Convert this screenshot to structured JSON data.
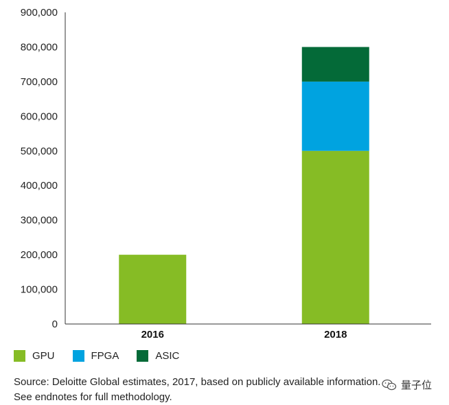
{
  "chart_data": {
    "type": "bar",
    "stacked": true,
    "categories": [
      "2016",
      "2018"
    ],
    "series": [
      {
        "name": "GPU",
        "color": "#86bc25",
        "values": [
          200000,
          500000
        ]
      },
      {
        "name": "FPGA",
        "color": "#00a3e0",
        "values": [
          0,
          200000
        ]
      },
      {
        "name": "ASIC",
        "color": "#046a38",
        "values": [
          0,
          100000
        ]
      }
    ],
    "ylim": [
      0,
      900000
    ],
    "yticks": [
      "0",
      "100,000",
      "200,000",
      "300,000",
      "400,000",
      "500,000",
      "600,000",
      "700,000",
      "800,000",
      "900,000"
    ],
    "title": "",
    "xlabel": "",
    "ylabel": "",
    "legend_position": "bottom-left"
  },
  "source_text": "Source: Deloitte Global estimates, 2017, based on publicly available information. See endnotes for full methodology.",
  "watermark": {
    "text": "量子位",
    "icon": "wechat-icon"
  }
}
